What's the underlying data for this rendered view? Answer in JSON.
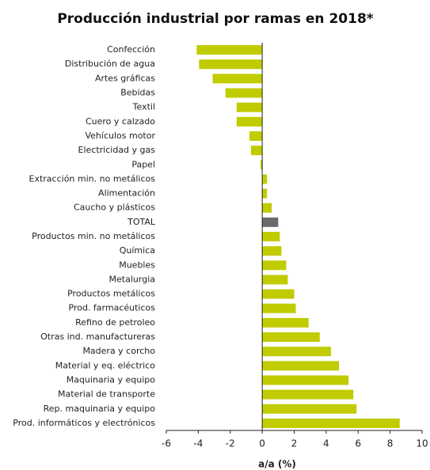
{
  "chart_data": {
    "type": "bar",
    "orientation": "horizontal",
    "title": "Producción industrial por ramas en 2018*",
    "x_label": "a/a (%)",
    "categories": [
      "Confección",
      "Distribución de agua",
      "Artes gráficas",
      "Bebidas",
      "Textil",
      "Cuero y calzado",
      "Vehículos motor",
      "Electricidad y gas",
      "Papel",
      "Extracción min. no metálicos",
      "Alimentación",
      "Caucho y plásticos",
      "TOTAL",
      "Productos min. no metálicos",
      "Química",
      "Muebles",
      "Metalurgia",
      "Productos metálicos",
      "Prod. farmacéuticos",
      "Refino de petroleo",
      "Otras ind. manufactureras",
      "Madera y corcho",
      "Material y eq. eléctrico",
      "Maquinaria y equipo",
      "Material de transporte",
      "Rep. maquinaria y equipo",
      "Prod. informáticos y electrónicos"
    ],
    "values": [
      -4.1,
      -3.95,
      -3.1,
      -2.3,
      -1.6,
      -1.6,
      -0.8,
      -0.7,
      -0.1,
      0.3,
      0.3,
      0.6,
      1.0,
      1.1,
      1.2,
      1.5,
      1.6,
      2.0,
      2.1,
      2.9,
      3.6,
      4.3,
      4.8,
      5.4,
      5.7,
      5.9,
      8.6
    ],
    "color": "#c0cc00",
    "highlight_color": "#6b6b6b",
    "highlight_category": "TOTAL",
    "xlim": [
      -6,
      10
    ],
    "xticks": [
      -6,
      -4,
      -2,
      0,
      2,
      4,
      6,
      8,
      10
    ],
    "grid": false
  }
}
